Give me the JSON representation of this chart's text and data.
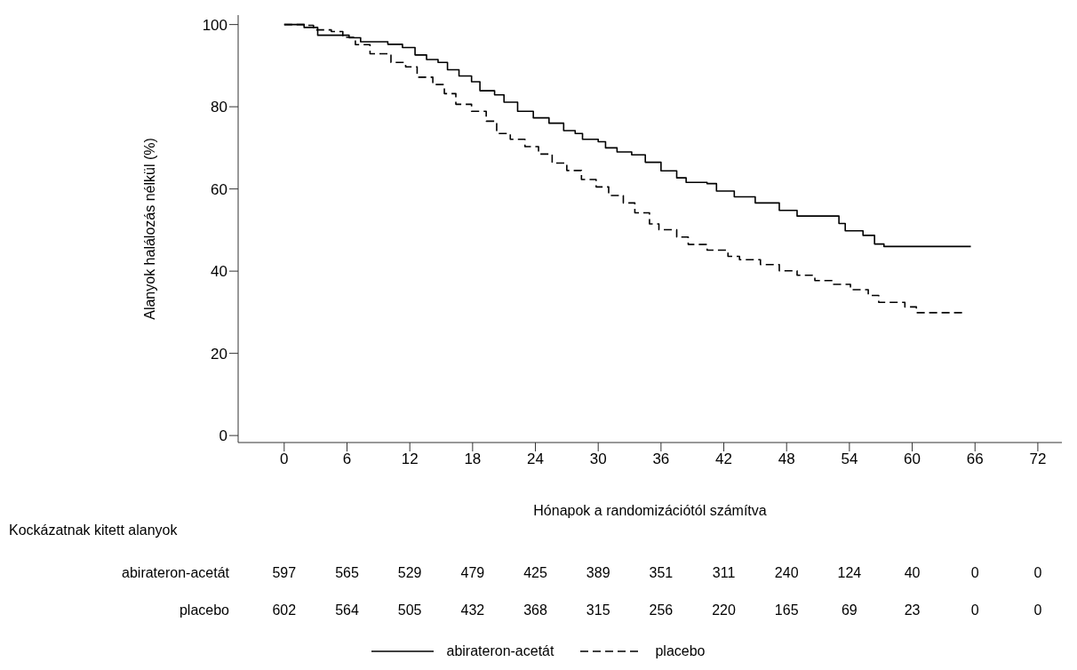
{
  "chart_data": {
    "type": "step",
    "xlabel": "Hónapok a randomizációtól számítva",
    "ylabel": "Alanyok halálozás nélkül (%)",
    "xlim": [
      -4.4,
      74.3
    ],
    "xticks": [
      0,
      6,
      12,
      18,
      24,
      30,
      36,
      42,
      48,
      54,
      60,
      66,
      72
    ],
    "ylim": [
      -1.7,
      102.3
    ],
    "yticks": [
      0,
      20,
      40,
      60,
      80,
      100
    ],
    "legend": "bottom",
    "marker": "none",
    "annotations": [
      "Kockázatnak kitett alanyok",
      "597 565 529 479 425 389 351 311 240 124 40 0 0",
      "602 564 505 432 368 315 256 220 165 69 23 0 0"
    ],
    "series": [
      {
        "name": "abirateron-acetát",
        "color": "#000000",
        "line_style": "solid",
        "x": [
          0,
          1.9,
          3.2,
          6.2,
          7.3,
          9.9,
          11.3,
          12.5,
          13.6,
          14.7,
          15.6,
          16.7,
          17.9,
          18.7,
          20.1,
          21.0,
          22.3,
          23.8,
          25.3,
          26.7,
          27.8,
          28.5,
          30.0,
          30.7,
          31.8,
          33.2,
          34.5,
          36.0,
          37.5,
          38.4,
          40.4,
          41.3,
          43.0,
          45.0,
          47.3,
          49.0,
          53.0,
          53.6,
          55.3,
          56.4,
          57.3,
          65.6
        ],
        "values": [
          100,
          99.3,
          97.4,
          96.8,
          95.8,
          95.2,
          94.4,
          92.6,
          91.5,
          90.8,
          89.0,
          87.5,
          86.1,
          83.9,
          82.9,
          81.1,
          78.9,
          77.3,
          76.0,
          74.2,
          73.5,
          72.1,
          71.5,
          70.0,
          69.0,
          68.3,
          66.5,
          64.4,
          62.7,
          61.6,
          61.3,
          59.5,
          58.1,
          56.6,
          54.8,
          53.4,
          51.6,
          49.8,
          48.7,
          46.6,
          46.0,
          46.0
        ]
      },
      {
        "name": "placebo",
        "color": "#000000",
        "line_style": "dashed",
        "x": [
          0,
          2.2,
          2.8,
          4.5,
          5.6,
          6.8,
          8.2,
          10.2,
          11.6,
          12.7,
          14.2,
          15.3,
          16.4,
          17.9,
          19.3,
          20.3,
          21.6,
          23.0,
          24.3,
          25.6,
          27.0,
          28.4,
          29.8,
          31.0,
          32.4,
          33.5,
          34.9,
          35.8,
          37.5,
          38.6,
          40.4,
          42.4,
          43.5,
          45.5,
          47.3,
          49.0,
          50.7,
          52.4,
          54.1,
          55.8,
          56.8,
          59.3,
          60.4,
          64.8
        ],
        "values": [
          100,
          99.8,
          98.7,
          98.3,
          96.9,
          95.1,
          92.9,
          90.8,
          89.7,
          87.2,
          85.4,
          83.2,
          80.6,
          78.9,
          76.5,
          73.5,
          72.1,
          70.3,
          68.5,
          66.3,
          64.5,
          62.3,
          60.5,
          58.4,
          56.6,
          54.2,
          51.5,
          50.1,
          48.3,
          46.5,
          45.1,
          43.6,
          42.8,
          41.6,
          40.1,
          39.0,
          37.7,
          36.8,
          35.5,
          34.1,
          32.4,
          31.3,
          29.9,
          29.9
        ]
      }
    ]
  }
}
